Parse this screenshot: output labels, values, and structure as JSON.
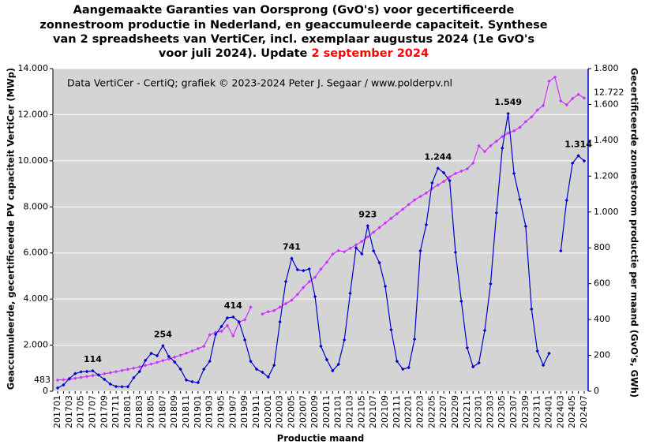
{
  "chart_data": {
    "type": "line",
    "title": [
      "Aangemaakte Garanties van Oorsprong (GvO's) voor gecertificeerde",
      "zonnestroom productie in Nederland, en geaccumuleerde capaciteit. Synthese",
      "van 2 spreadsheets van VertiCer, incl. exemplaar augustus 2024 (1e GvO's",
      "voor juli 2024). Update"
    ],
    "title_date": "2 september 2024",
    "title_date_color": "#ff0000",
    "source": "Data VertiCer - CertiQ; grafiek © 2023-2024 Peter J. Segaar / www.polderpv.nl",
    "xlabel": "Productie maand",
    "ylabel": "Geaccumuleerde, gecertificeerde PV capaciteit VertiCer (MWp)",
    "y2label": "Gecertificeerde zonnestroom productie per maand (GvO's, GWh)",
    "categories": [
      "201701",
      null,
      "201703",
      null,
      "201705",
      null,
      "201707",
      null,
      "201709",
      null,
      "201711",
      null,
      "201801",
      null,
      "201803",
      null,
      "201805",
      null,
      "201807",
      null,
      "201809",
      null,
      "201811",
      null,
      "201901",
      null,
      "201903",
      null,
      "201905",
      null,
      "201907",
      null,
      "201909",
      null,
      "201911",
      null,
      "202001",
      null,
      "202003",
      null,
      "202005",
      null,
      "202007",
      null,
      "202009",
      null,
      "202011",
      null,
      "202101",
      null,
      "202103",
      null,
      "202105",
      null,
      "202107",
      null,
      "202109",
      null,
      "202111",
      null,
      "202201",
      null,
      "202203",
      null,
      "202205",
      null,
      "202207",
      null,
      "202209",
      null,
      "202211",
      null,
      "202301",
      null,
      "202303",
      null,
      "202305",
      null,
      "202307",
      null,
      "202309",
      null,
      "202311",
      null,
      "202401",
      null,
      "202403",
      null,
      "202405",
      null,
      "202407"
    ],
    "series": [
      {
        "name": "Geaccumuleerde capaciteit",
        "color": "#cc33ff",
        "axis": "y",
        "values": [
          483,
          500,
          520,
          560,
          600,
          640,
          680,
          720,
          760,
          800,
          850,
          900,
          950,
          1000,
          1060,
          1120,
          1180,
          1250,
          1330,
          1400,
          1480,
          1560,
          1650,
          1750,
          1850,
          1950,
          2450,
          2550,
          2600,
          2850,
          2400,
          3000,
          3100,
          3650,
          null,
          3350,
          3450,
          3500,
          3650,
          3800,
          3950,
          4200,
          4500,
          4750,
          4950,
          5300,
          5600,
          5950,
          6100,
          6050,
          6200,
          6350,
          6500,
          6700,
          6900,
          7100,
          7300,
          7500,
          7700,
          7900,
          8100,
          8300,
          8450,
          8600,
          8800,
          8950,
          9100,
          9300,
          9450,
          9550,
          9650,
          9900,
          10650,
          10400,
          10650,
          10850,
          11050,
          11200,
          11300,
          11450,
          11700,
          11900,
          12200,
          12400,
          13450,
          13630,
          12600,
          12430,
          12700,
          12880,
          12722
        ],
        "value_labels": [
          "483",
          null,
          null,
          null,
          null,
          null,
          null,
          null,
          null,
          null,
          null,
          null,
          null,
          null,
          null,
          null,
          null,
          null,
          null,
          null,
          null,
          null,
          null,
          null,
          null,
          null,
          null,
          null,
          null,
          null,
          null,
          null,
          null,
          null,
          null,
          null,
          null,
          null,
          null,
          null,
          null,
          null,
          null,
          null,
          null,
          null,
          null,
          null,
          null,
          null,
          null,
          null,
          null,
          null,
          null,
          null,
          null,
          null,
          null,
          null,
          null,
          null,
          null,
          null,
          null,
          null,
          null,
          null,
          null,
          null,
          null,
          null,
          null,
          null,
          null,
          null,
          null,
          null,
          null,
          null,
          null,
          null,
          null,
          null,
          null,
          null,
          null,
          null,
          null,
          null,
          "12.722"
        ]
      },
      {
        "name": "Productie per maand",
        "color": "#0000cc",
        "axis": "y2",
        "values": [
          18,
          35,
          70,
          98,
          108,
          110,
          114,
          90,
          66,
          40,
          26,
          25,
          25,
          75,
          110,
          172,
          211,
          198,
          254,
          194,
          163,
          123,
          62,
          53,
          48,
          123,
          167,
          317,
          361,
          409,
          414,
          387,
          286,
          167,
          123,
          106,
          79,
          145,
          387,
          612,
          741,
          678,
          673,
          682,
          528,
          251,
          176,
          114,
          150,
          286,
          546,
          800,
          766,
          923,
          783,
          717,
          585,
          343,
          167,
          123,
          132,
          290,
          783,
          929,
          1162,
          1244,
          1219,
          1175,
          775,
          502,
          242,
          136,
          158,
          339,
          599,
          995,
          1356,
          1549,
          1215,
          1070,
          920,
          458,
          224,
          145,
          211,
          null,
          783,
          1065,
          1272,
          1314,
          1285
        ],
        "value_labels": [
          null,
          null,
          null,
          null,
          null,
          null,
          "114",
          null,
          null,
          null,
          null,
          null,
          null,
          null,
          null,
          null,
          null,
          null,
          "254",
          null,
          null,
          null,
          null,
          null,
          null,
          null,
          null,
          null,
          null,
          null,
          "414",
          null,
          null,
          null,
          null,
          null,
          null,
          null,
          null,
          null,
          "741",
          null,
          null,
          null,
          null,
          null,
          null,
          null,
          null,
          null,
          null,
          null,
          null,
          "923",
          null,
          null,
          null,
          null,
          null,
          null,
          null,
          null,
          null,
          null,
          null,
          "1.244",
          null,
          null,
          null,
          null,
          null,
          null,
          null,
          null,
          null,
          null,
          null,
          "1.549",
          null,
          null,
          null,
          null,
          null,
          null,
          null,
          null,
          null,
          null,
          null,
          "1.314",
          null
        ]
      }
    ],
    "ylim": [
      0,
      14000
    ],
    "yticks": [
      0,
      {
        "value": 2000,
        "label": "2.000"
      },
      {
        "value": 4000,
        "label": "4.000"
      },
      {
        "value": 6000,
        "label": "6.000"
      },
      {
        "value": 8000,
        "label": "8.000"
      },
      {
        "value": 10000,
        "label": "10.000"
      },
      {
        "value": 12000,
        "label": "12.000"
      },
      {
        "value": 14000,
        "label": "14.000"
      }
    ],
    "y2lim": [
      0,
      1800
    ],
    "y2ticks": [
      0,
      200,
      400,
      600,
      800,
      {
        "value": 1000,
        "label": "1.000"
      },
      {
        "value": 1200,
        "label": "1.200"
      },
      {
        "value": 1400,
        "label": "1.400"
      },
      {
        "value": 1600,
        "label": "1.600"
      },
      {
        "value": 1800,
        "label": "1.800"
      }
    ],
    "plot_background": "#d4d4d4",
    "grid": true
  }
}
